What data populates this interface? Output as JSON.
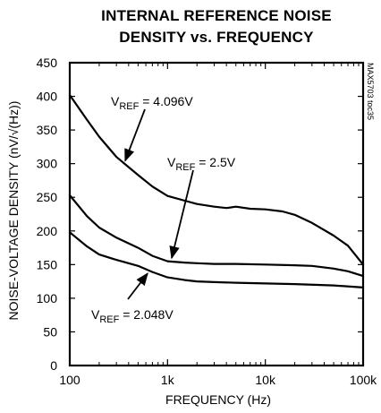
{
  "chart_data": {
    "type": "line",
    "title_lines": [
      "INTERNAL REFERENCE NOISE",
      "DENSITY vs. FREQUENCY"
    ],
    "xlabel": "FREQUENCY (Hz)",
    "ylabel": "NOISE-VOLTAGE DENSITY (nV/√(Hz))",
    "x_scale": "log",
    "xlim": [
      100,
      100000
    ],
    "ylim": [
      0,
      450
    ],
    "x_ticks": [
      {
        "value": 100,
        "label": "100"
      },
      {
        "value": 1000,
        "label": "1k"
      },
      {
        "value": 10000,
        "label": "10k"
      },
      {
        "value": 100000,
        "label": "100k"
      }
    ],
    "y_ticks": [
      0,
      50,
      100,
      150,
      200,
      250,
      300,
      350,
      400,
      450
    ],
    "grid": false,
    "series": [
      {
        "name": "VREF = 4.096V",
        "label": {
          "main": "V",
          "sub": "REF",
          "rest": " = 4.096V"
        },
        "x": [
          100,
          150,
          200,
          300,
          500,
          700,
          1000,
          1500,
          2000,
          3000,
          4000,
          5000,
          7000,
          10000,
          15000,
          20000,
          30000,
          50000,
          70000,
          100000
        ],
        "y": [
          402,
          365,
          340,
          310,
          283,
          266,
          252,
          245,
          240,
          236,
          234,
          236,
          233,
          232,
          229,
          224,
          212,
          193,
          178,
          150
        ]
      },
      {
        "name": "VREF = 2.5V",
        "label": {
          "main": "V",
          "sub": "REF",
          "rest": " = 2.5V"
        },
        "x": [
          100,
          150,
          200,
          300,
          500,
          700,
          1000,
          1500,
          2000,
          3000,
          5000,
          10000,
          20000,
          30000,
          50000,
          70000,
          100000
        ],
        "y": [
          253,
          222,
          205,
          190,
          175,
          163,
          155,
          153,
          152,
          151,
          151,
          150,
          149,
          148,
          144,
          140,
          133
        ]
      },
      {
        "name": "VREF = 2.048V",
        "label": {
          "main": "V",
          "sub": "REF",
          "rest": " = 2.048V"
        },
        "x": [
          100,
          150,
          200,
          300,
          500,
          700,
          1000,
          1500,
          2000,
          3000,
          5000,
          10000,
          20000,
          50000,
          100000
        ],
        "y": [
          198,
          177,
          165,
          157,
          148,
          139,
          131,
          127,
          125,
          124,
          123,
          122,
          121,
          119,
          116
        ]
      }
    ],
    "annotations": [
      {
        "series": 0
      },
      {
        "series": 1
      },
      {
        "series": 2
      }
    ],
    "figure_id": "MAX5703 toc35"
  }
}
